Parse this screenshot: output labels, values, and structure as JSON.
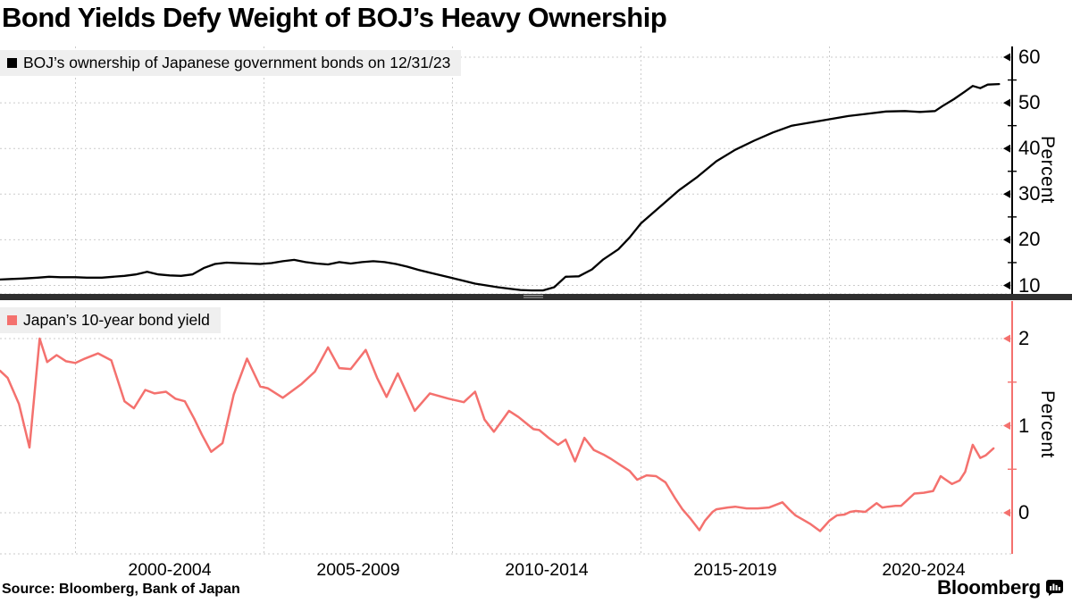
{
  "title": "Bond Yields Defy Weight of BOJ’s Heavy Ownership",
  "source_note": "Source: Bloomberg, Bank of Japan",
  "brand": {
    "wordmark": "Bloomberg",
    "icon": "bloomberg-bug-icon"
  },
  "colors": {
    "boj_line": "#000000",
    "yield_line": "#F4716E",
    "gridline": "#cbcbcb",
    "legend_background": "#efefef",
    "separator": "#2f2f2f"
  },
  "chart_data": {
    "type": "line",
    "title": "Bond Yields Defy Weight of BOJ’s Heavy Ownership",
    "x_axis": {
      "range_years": [
        1998,
        2024.9
      ],
      "gridline_years": [
        2000,
        2005,
        2010,
        2015,
        2020
      ],
      "labels": [
        {
          "text": "2000-2004",
          "center_year": 2002.5
        },
        {
          "text": "2005-2009",
          "center_year": 2007.5
        },
        {
          "text": "2010-2014",
          "center_year": 2012.5
        },
        {
          "text": "2015-2019",
          "center_year": 2017.5
        },
        {
          "text": "2020-2024",
          "center_year": 2022.5
        }
      ]
    },
    "panels": [
      {
        "id": "boj-ownership",
        "legend": "BOJ’s ownership of Japanese government bonds on 12/31/23",
        "color": "#000000",
        "axis_title": "Percent",
        "ylim": [
          7.5,
          62
        ],
        "major_ticks": [
          10,
          20,
          30,
          40,
          50,
          60
        ],
        "minor_ticks": [
          15,
          25,
          35,
          45,
          55
        ],
        "series": [
          [
            1998.0,
            11.3
          ],
          [
            1998.3,
            11.4
          ],
          [
            1998.6,
            11.5
          ],
          [
            1999.0,
            11.7
          ],
          [
            1999.3,
            11.9
          ],
          [
            1999.6,
            11.8
          ],
          [
            2000.0,
            11.8
          ],
          [
            2000.3,
            11.7
          ],
          [
            2000.7,
            11.7
          ],
          [
            2001.0,
            11.9
          ],
          [
            2001.3,
            12.1
          ],
          [
            2001.6,
            12.4
          ],
          [
            2001.9,
            13.0
          ],
          [
            2002.2,
            12.4
          ],
          [
            2002.5,
            12.2
          ],
          [
            2002.8,
            12.1
          ],
          [
            2003.1,
            12.4
          ],
          [
            2003.4,
            13.8
          ],
          [
            2003.7,
            14.7
          ],
          [
            2004.0,
            15.0
          ],
          [
            2004.3,
            14.9
          ],
          [
            2004.6,
            14.8
          ],
          [
            2004.9,
            14.7
          ],
          [
            2005.2,
            14.9
          ],
          [
            2005.5,
            15.3
          ],
          [
            2005.8,
            15.6
          ],
          [
            2006.1,
            15.1
          ],
          [
            2006.4,
            14.8
          ],
          [
            2006.7,
            14.6
          ],
          [
            2007.0,
            15.1
          ],
          [
            2007.3,
            14.8
          ],
          [
            2007.6,
            15.1
          ],
          [
            2007.9,
            15.3
          ],
          [
            2008.2,
            15.1
          ],
          [
            2008.5,
            14.7
          ],
          [
            2008.8,
            14.1
          ],
          [
            2009.1,
            13.4
          ],
          [
            2009.4,
            12.8
          ],
          [
            2009.7,
            12.2
          ],
          [
            2010.0,
            11.6
          ],
          [
            2010.3,
            11.0
          ],
          [
            2010.6,
            10.4
          ],
          [
            2010.9,
            10.0
          ],
          [
            2011.2,
            9.6
          ],
          [
            2011.5,
            9.3
          ],
          [
            2011.8,
            9.0
          ],
          [
            2012.1,
            8.9
          ],
          [
            2012.4,
            8.9
          ],
          [
            2012.7,
            9.6
          ],
          [
            2013.0,
            11.9
          ],
          [
            2013.35,
            12.0
          ],
          [
            2013.7,
            13.5
          ],
          [
            2014.0,
            15.7
          ],
          [
            2014.4,
            17.9
          ],
          [
            2014.7,
            20.5
          ],
          [
            2015.0,
            23.6
          ],
          [
            2015.5,
            27.2
          ],
          [
            2016.0,
            30.8
          ],
          [
            2016.5,
            33.8
          ],
          [
            2017.0,
            37.2
          ],
          [
            2017.5,
            39.7
          ],
          [
            2018.0,
            41.7
          ],
          [
            2018.5,
            43.5
          ],
          [
            2019.0,
            45.0
          ],
          [
            2019.5,
            45.7
          ],
          [
            2020.0,
            46.4
          ],
          [
            2020.5,
            47.1
          ],
          [
            2021.0,
            47.6
          ],
          [
            2021.5,
            48.1
          ],
          [
            2022.0,
            48.2
          ],
          [
            2022.4,
            48.0
          ],
          [
            2022.8,
            48.2
          ],
          [
            2023.0,
            49.3
          ],
          [
            2023.3,
            50.8
          ],
          [
            2023.6,
            52.5
          ],
          [
            2023.8,
            53.7
          ],
          [
            2024.0,
            53.2
          ],
          [
            2024.2,
            54.0
          ],
          [
            2024.5,
            54.1
          ]
        ]
      },
      {
        "id": "jgb-10y-yield",
        "legend": "Japan’s 10-year bond yield",
        "color": "#F4716E",
        "axis_title": "Percent",
        "ylim": [
          -0.45,
          2.45
        ],
        "major_ticks": [
          0,
          1,
          2
        ],
        "minor_ticks": [
          0.5,
          1.5
        ],
        "series": [
          [
            1998.0,
            1.63
          ],
          [
            1998.2,
            1.55
          ],
          [
            1998.5,
            1.25
          ],
          [
            1998.78,
            0.75
          ],
          [
            1999.05,
            2.0
          ],
          [
            1999.25,
            1.73
          ],
          [
            1999.5,
            1.81
          ],
          [
            1999.75,
            1.74
          ],
          [
            2000.0,
            1.72
          ],
          [
            2000.25,
            1.77
          ],
          [
            2000.6,
            1.83
          ],
          [
            2000.95,
            1.75
          ],
          [
            2001.3,
            1.28
          ],
          [
            2001.55,
            1.2
          ],
          [
            2001.85,
            1.41
          ],
          [
            2002.1,
            1.37
          ],
          [
            2002.4,
            1.39
          ],
          [
            2002.65,
            1.31
          ],
          [
            2002.9,
            1.28
          ],
          [
            2003.15,
            1.08
          ],
          [
            2003.35,
            0.9
          ],
          [
            2003.6,
            0.7
          ],
          [
            2003.9,
            0.8
          ],
          [
            2004.2,
            1.36
          ],
          [
            2004.55,
            1.77
          ],
          [
            2004.9,
            1.45
          ],
          [
            2005.1,
            1.43
          ],
          [
            2005.5,
            1.32
          ],
          [
            2006.0,
            1.48
          ],
          [
            2006.35,
            1.62
          ],
          [
            2006.7,
            1.9
          ],
          [
            2007.0,
            1.66
          ],
          [
            2007.3,
            1.65
          ],
          [
            2007.7,
            1.87
          ],
          [
            2008.0,
            1.55
          ],
          [
            2008.25,
            1.33
          ],
          [
            2008.55,
            1.6
          ],
          [
            2009.0,
            1.17
          ],
          [
            2009.4,
            1.37
          ],
          [
            2009.9,
            1.31
          ],
          [
            2010.3,
            1.27
          ],
          [
            2010.6,
            1.39
          ],
          [
            2010.85,
            1.07
          ],
          [
            2011.1,
            0.93
          ],
          [
            2011.3,
            1.05
          ],
          [
            2011.5,
            1.17
          ],
          [
            2011.75,
            1.1
          ],
          [
            2011.95,
            1.03
          ],
          [
            2012.15,
            0.96
          ],
          [
            2012.3,
            0.95
          ],
          [
            2012.55,
            0.86
          ],
          [
            2012.8,
            0.78
          ],
          [
            2013.0,
            0.84
          ],
          [
            2013.25,
            0.59
          ],
          [
            2013.5,
            0.86
          ],
          [
            2013.75,
            0.72
          ],
          [
            2014.0,
            0.67
          ],
          [
            2014.2,
            0.62
          ],
          [
            2014.45,
            0.55
          ],
          [
            2014.7,
            0.48
          ],
          [
            2014.9,
            0.38
          ],
          [
            2015.15,
            0.43
          ],
          [
            2015.4,
            0.42
          ],
          [
            2015.65,
            0.35
          ],
          [
            2015.9,
            0.17
          ],
          [
            2016.1,
            0.04
          ],
          [
            2016.3,
            -0.06
          ],
          [
            2016.55,
            -0.2
          ],
          [
            2016.7,
            -0.09
          ],
          [
            2016.9,
            0.01
          ],
          [
            2017.0,
            0.04
          ],
          [
            2017.3,
            0.06
          ],
          [
            2017.5,
            0.07
          ],
          [
            2017.8,
            0.05
          ],
          [
            2018.1,
            0.05
          ],
          [
            2018.4,
            0.06
          ],
          [
            2018.75,
            0.12
          ],
          [
            2018.95,
            0.03
          ],
          [
            2019.1,
            -0.03
          ],
          [
            2019.3,
            -0.08
          ],
          [
            2019.5,
            -0.13
          ],
          [
            2019.75,
            -0.21
          ],
          [
            2020.0,
            -0.09
          ],
          [
            2020.2,
            -0.03
          ],
          [
            2020.4,
            -0.02
          ],
          [
            2020.55,
            0.01
          ],
          [
            2020.7,
            0.02
          ],
          [
            2020.95,
            0.01
          ],
          [
            2021.25,
            0.11
          ],
          [
            2021.4,
            0.06
          ],
          [
            2021.55,
            0.07
          ],
          [
            2021.75,
            0.08
          ],
          [
            2021.9,
            0.08
          ],
          [
            2022.25,
            0.22
          ],
          [
            2022.5,
            0.23
          ],
          [
            2022.75,
            0.25
          ],
          [
            2022.95,
            0.42
          ],
          [
            2023.05,
            0.39
          ],
          [
            2023.25,
            0.33
          ],
          [
            2023.45,
            0.37
          ],
          [
            2023.6,
            0.47
          ],
          [
            2023.8,
            0.78
          ],
          [
            2024.0,
            0.63
          ],
          [
            2024.15,
            0.66
          ],
          [
            2024.35,
            0.74
          ]
        ]
      }
    ]
  }
}
